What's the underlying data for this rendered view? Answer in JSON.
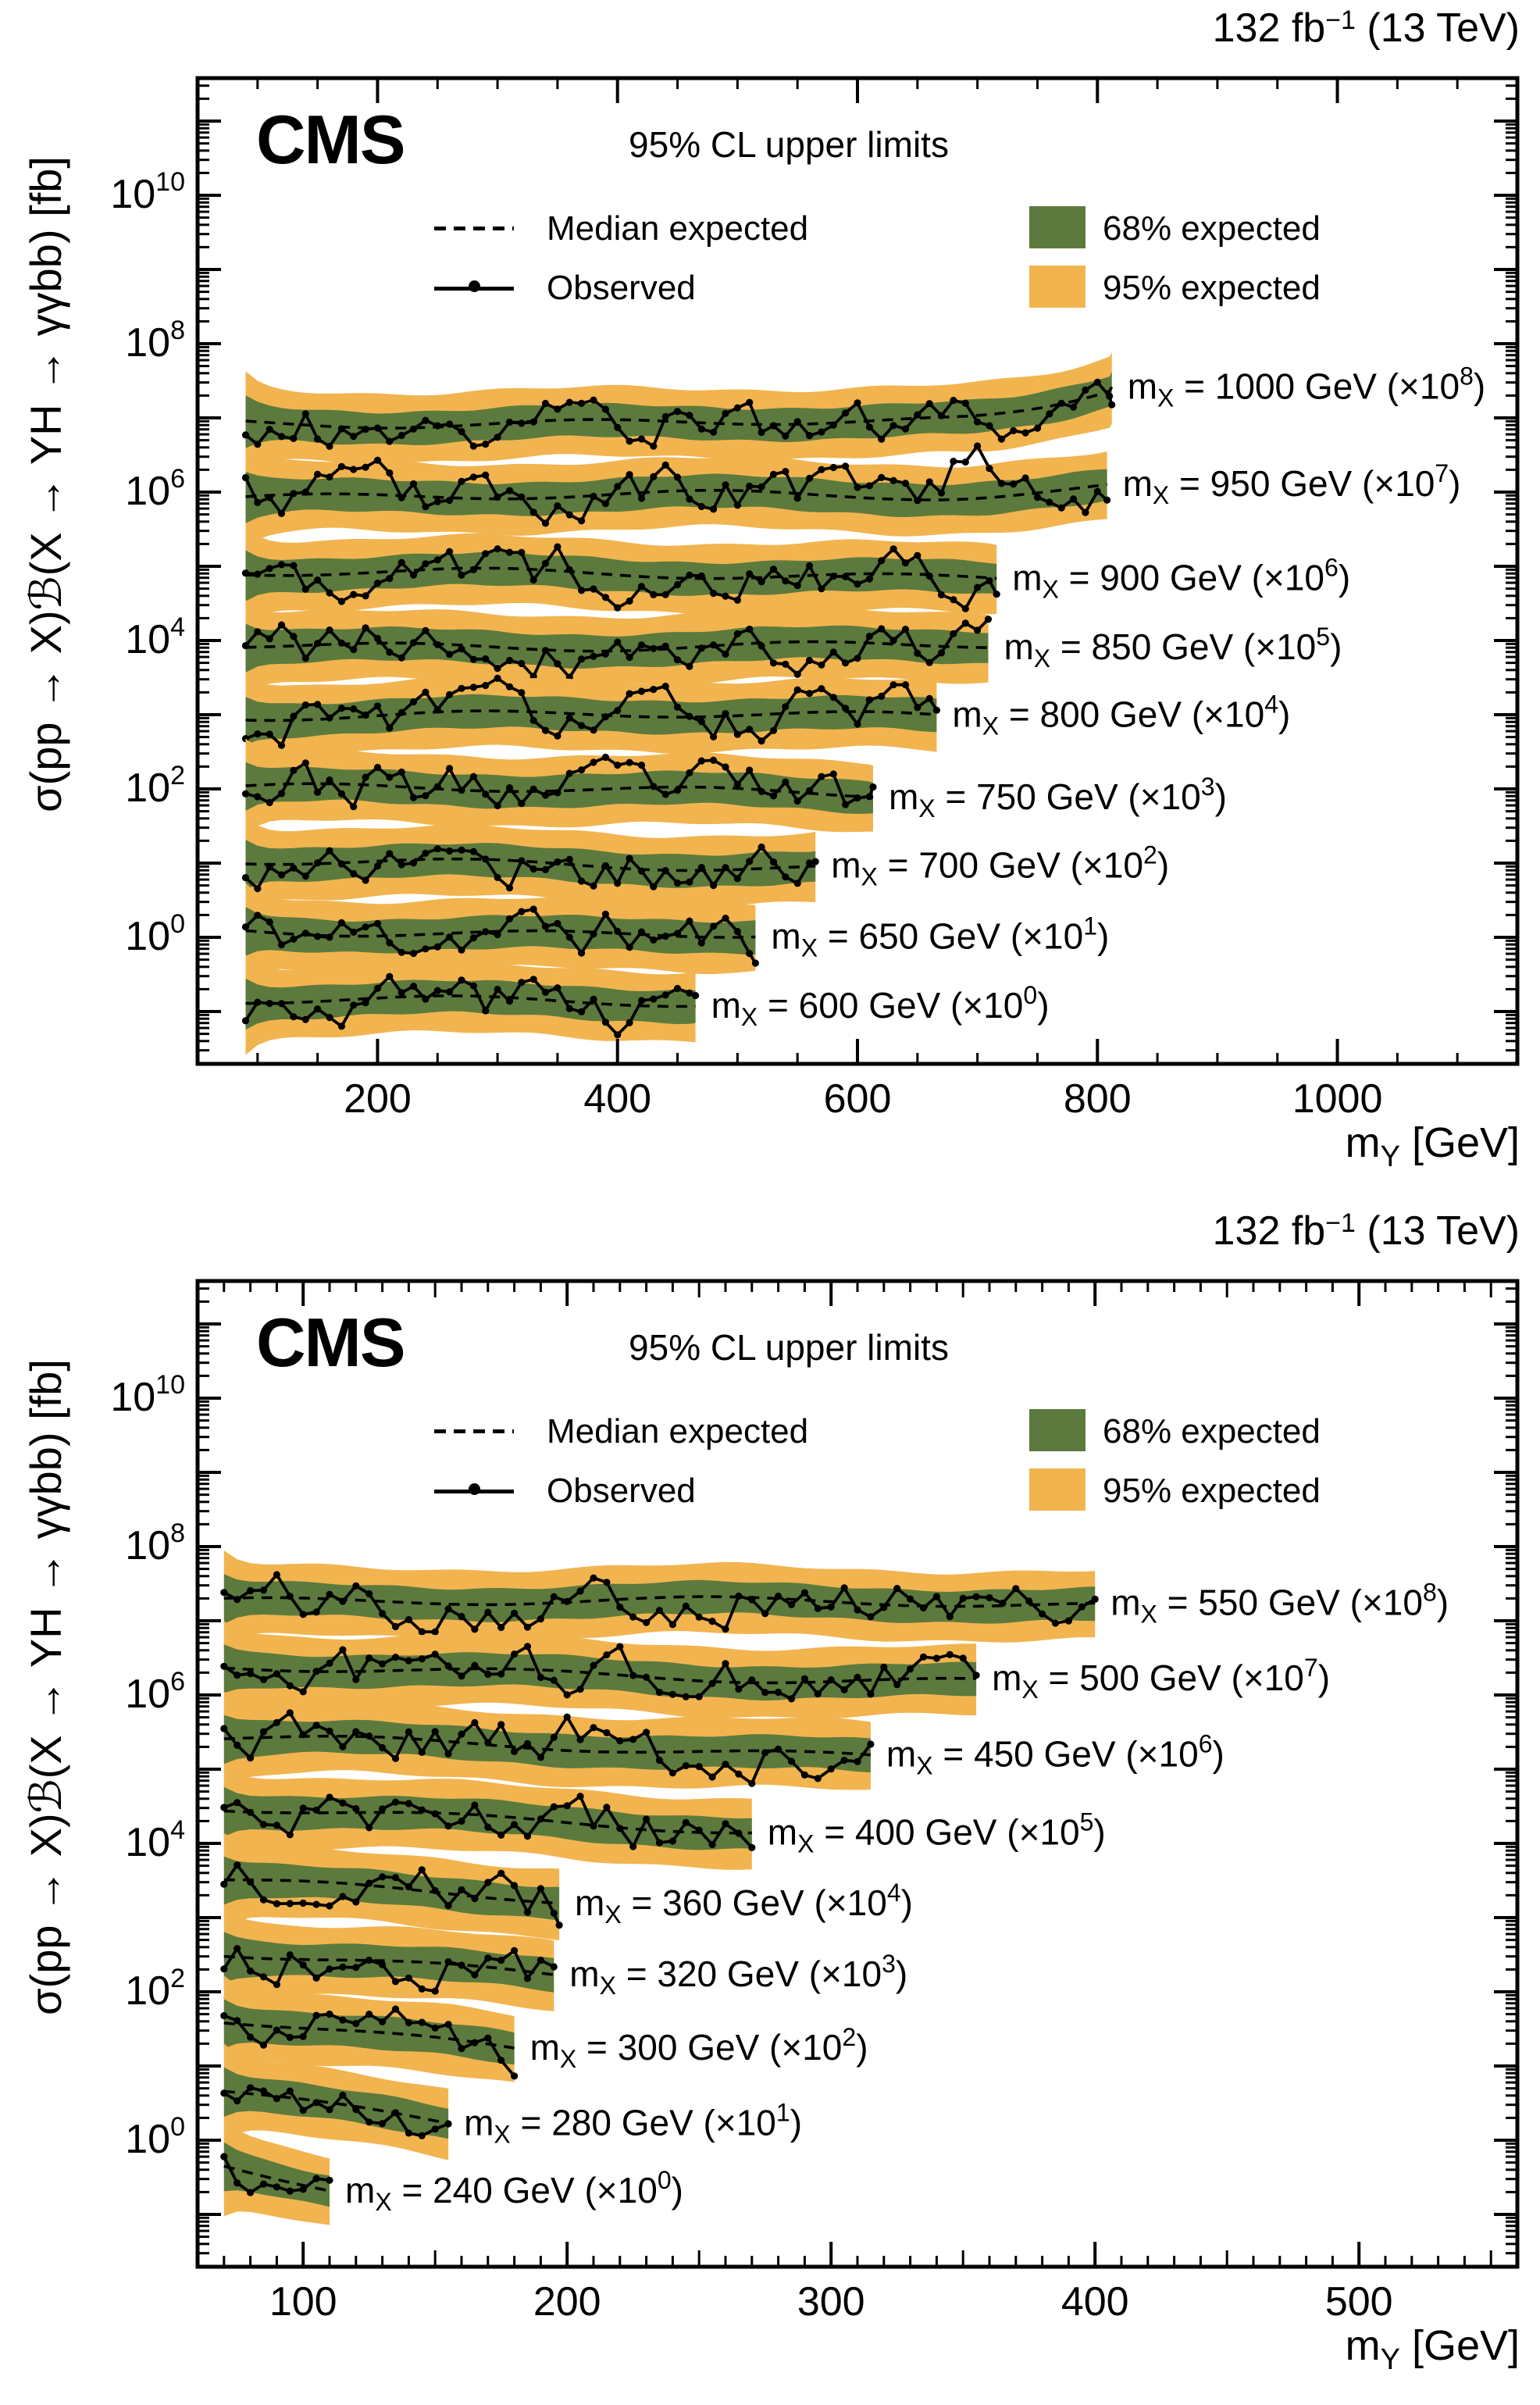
{
  "header": {
    "cms": "CMS",
    "subtitle": "95% CL upper limits",
    "lumi_value": "132 fb",
    "lumi_sup": "−1",
    "lumi_rest": " (13 TeV)"
  },
  "legend": {
    "median": "Median expected",
    "observed": "Observed",
    "band68": "68% expected",
    "band95": "95% expected"
  },
  "axes": {
    "y_label": "σ(pp → X)ℬ(X → YH → γγbb) [fb]",
    "x_label_base": "m",
    "x_label_sub": "Y",
    "x_label_rest": " [GeV]",
    "band_label_prefix": "m",
    "band_label_sub": "X",
    "band_label_eq": " = ",
    "band_label_unit": " GeV (×10",
    "band_label_close": ")"
  },
  "colors": {
    "band68": "#5c7a3d",
    "band95": "#f2b44f",
    "ink": "#000000"
  },
  "chart_data": [
    {
      "type": "line",
      "panel": "high-mass-X",
      "title": "95% CL upper limits",
      "xlabel": "m_Y [GeV]",
      "ylabel": "σ(pp → X)B(X → YH → γγbb) [fb]",
      "x_domain": [
        50,
        1150
      ],
      "x_major_ticks": [
        200,
        400,
        600,
        800,
        1000
      ],
      "x_minor_step": 50,
      "x_mid_step": 0,
      "y_tick_exponents": [
        0,
        2,
        4,
        6,
        8,
        10
      ],
      "y_log_range": [
        -1.7,
        11.6
      ],
      "point_step_gev": 10,
      "band_half_width_log10": {
        "w68": 0.21,
        "w95": 0.45
      },
      "bands": [
        {
          "mx": 1000,
          "scale_exponent": 8,
          "my_start": 90,
          "my_end": 812,
          "median_log10_scaled": 6.95,
          "tilt_log10": -0.02,
          "end_rise_log10": 0.5,
          "bumps": [],
          "seed": 59
        },
        {
          "mx": 950,
          "scale_exponent": 7,
          "my_start": 90,
          "my_end": 808,
          "median_log10_scaled": 5.95,
          "tilt_log10": -0.02,
          "end_rise_log10": 0.15,
          "bumps": [
            {
              "at": 0.84,
              "w": 0.045,
              "h": 0.5
            }
          ],
          "seed": 53
        },
        {
          "mx": 900,
          "scale_exponent": 6,
          "my_start": 90,
          "my_end": 716,
          "median_log10_scaled": 4.9,
          "tilt_log10": -0.02,
          "end_rise_log10": 0,
          "bumps": [],
          "seed": 47
        },
        {
          "mx": 850,
          "scale_exponent": 5,
          "my_start": 90,
          "my_end": 709,
          "median_log10_scaled": 3.95,
          "tilt_log10": -0.03,
          "end_rise_log10": 0,
          "bumps": [],
          "seed": 41
        },
        {
          "mx": 800,
          "scale_exponent": 4,
          "my_start": 90,
          "my_end": 666,
          "median_log10_scaled": 3.0,
          "tilt_log10": -0.03,
          "end_rise_log10": 0,
          "bumps": [],
          "seed": 31
        },
        {
          "mx": 750,
          "scale_exponent": 3,
          "my_start": 90,
          "my_end": 613,
          "median_log10_scaled": 2.0,
          "tilt_log10": -0.04,
          "end_rise_log10": 0,
          "bumps": [],
          "seed": 23
        },
        {
          "mx": 700,
          "scale_exponent": 2,
          "my_start": 90,
          "my_end": 565,
          "median_log10_scaled": 1.0,
          "tilt_log10": -0.04,
          "end_rise_log10": 0,
          "bumps": [],
          "seed": 17
        },
        {
          "mx": 650,
          "scale_exponent": 1,
          "my_start": 90,
          "my_end": 515,
          "median_log10_scaled": 0.1,
          "tilt_log10": -0.05,
          "end_rise_log10": 0,
          "bumps": [],
          "seed": 11
        },
        {
          "mx": 600,
          "scale_exponent": 0,
          "my_start": 90,
          "my_end": 465,
          "median_log10_scaled": -0.85,
          "tilt_log10": -0.05,
          "end_rise_log10": 0,
          "bumps": [],
          "seed": 3
        }
      ]
    },
    {
      "type": "line",
      "panel": "low-mass-X",
      "title": "95% CL upper limits",
      "xlabel": "m_Y [GeV]",
      "ylabel": "σ(pp → X)B(X → YH → γγbb) [fb]",
      "x_domain": [
        60,
        560
      ],
      "x_major_ticks": [
        100,
        200,
        300,
        400,
        500
      ],
      "x_minor_step": 10,
      "x_mid_step": 50,
      "y_tick_exponents": [
        0,
        2,
        4,
        6,
        8,
        10
      ],
      "y_log_range": [
        -1.7,
        11.6
      ],
      "point_step_gev": 5,
      "band_half_width_log10": {
        "w68": 0.21,
        "w95": 0.45
      },
      "bands": [
        {
          "mx": 550,
          "scale_exponent": 8,
          "my_start": 70,
          "my_end": 400,
          "median_log10_scaled": 7.3,
          "tilt_log10": -0.1,
          "end_rise_log10": 0,
          "bumps": [],
          "seed": 101
        },
        {
          "mx": 500,
          "scale_exponent": 7,
          "my_start": 70,
          "my_end": 355,
          "median_log10_scaled": 6.35,
          "tilt_log10": -0.15,
          "end_rise_log10": 0,
          "bumps": [],
          "seed": 97
        },
        {
          "mx": 450,
          "scale_exponent": 6,
          "my_start": 70,
          "my_end": 315,
          "median_log10_scaled": 5.4,
          "tilt_log10": -0.2,
          "end_rise_log10": 0,
          "bumps": [
            {
              "at": 0.6,
              "w": 0.05,
              "h": 0.4
            }
          ],
          "seed": 89
        },
        {
          "mx": 400,
          "scale_exponent": 5,
          "my_start": 70,
          "my_end": 270,
          "median_log10_scaled": 4.45,
          "tilt_log10": -0.25,
          "end_rise_log10": 0,
          "bumps": [],
          "seed": 83
        },
        {
          "mx": 360,
          "scale_exponent": 4,
          "my_start": 70,
          "my_end": 197,
          "median_log10_scaled": 3.5,
          "tilt_log10": -0.3,
          "end_rise_log10": 0,
          "bumps": [],
          "seed": 79
        },
        {
          "mx": 320,
          "scale_exponent": 3,
          "my_start": 70,
          "my_end": 195,
          "median_log10_scaled": 2.55,
          "tilt_log10": -0.35,
          "end_rise_log10": 0,
          "bumps": [],
          "seed": 73
        },
        {
          "mx": 300,
          "scale_exponent": 2,
          "my_start": 70,
          "my_end": 180,
          "median_log10_scaled": 1.6,
          "tilt_log10": -0.4,
          "end_rise_log10": 0,
          "bumps": [],
          "seed": 71
        },
        {
          "mx": 280,
          "scale_exponent": 1,
          "my_start": 70,
          "my_end": 155,
          "median_log10_scaled": 0.65,
          "tilt_log10": -0.4,
          "end_rise_log10": 0,
          "bumps": [],
          "seed": 67
        },
        {
          "mx": 240,
          "scale_exponent": 0,
          "my_start": 70,
          "my_end": 110,
          "median_log10_scaled": -0.3,
          "tilt_log10": -0.3,
          "end_rise_log10": 0,
          "bumps": [],
          "seed": 61
        }
      ]
    }
  ]
}
